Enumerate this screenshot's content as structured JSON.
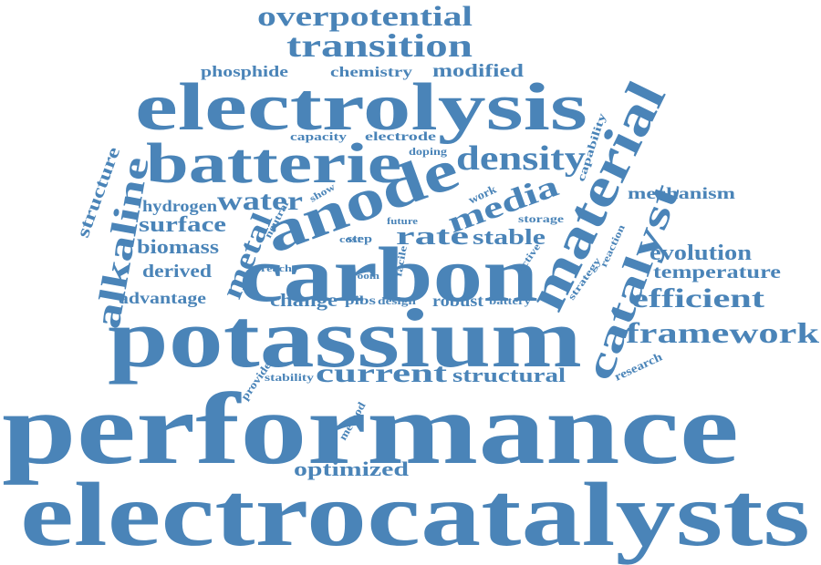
{
  "color": "#4a84b8",
  "words": {
    "performance": "performance",
    "electrocatalysts": "electrocatalysts",
    "potassium": "potassium",
    "carbon": "carbon",
    "electrolysis": "electrolysis",
    "anode": "anode",
    "batterie": "batterie",
    "material": "material",
    "catalyst": "catalyst",
    "alkaline": "alkaline",
    "transition": "transition",
    "overpotential": "overpotential",
    "density": "density",
    "media": "media",
    "metal": "metal",
    "water": "water",
    "framework": "framework",
    "efficient": "efficient",
    "current": "current",
    "rate": "rate",
    "stable": "stable",
    "surface": "surface",
    "biomass": "biomass",
    "derived": "derived",
    "hydrogen": "hydrogen",
    "structure": "structure",
    "advantage": "advantage",
    "change": "change",
    "robust": "robust",
    "structural": "structural",
    "optimized": "optimized",
    "evolution": "evolution",
    "temperature": "temperature",
    "mechanism": "mechanism",
    "phosphide": "phosphide",
    "chemistry": "chemistry",
    "modified": "modified",
    "capacity": "capacity",
    "electrode": "electrode",
    "doping": "doping",
    "capability": "capability",
    "work": "work",
    "storage": "storage",
    "show": "show",
    "neutral": "neutral",
    "cost": "cost",
    "future": "future",
    "step": "step",
    "room": "room",
    "reach": "reach",
    "facile": "facile",
    "pibs": "pibs",
    "design": "design",
    "battery": "battery",
    "active": "active",
    "strategy": "strategy",
    "reaction": "reaction",
    "research": "research",
    "stability": "stability",
    "provide": "provide",
    "method": "method"
  }
}
